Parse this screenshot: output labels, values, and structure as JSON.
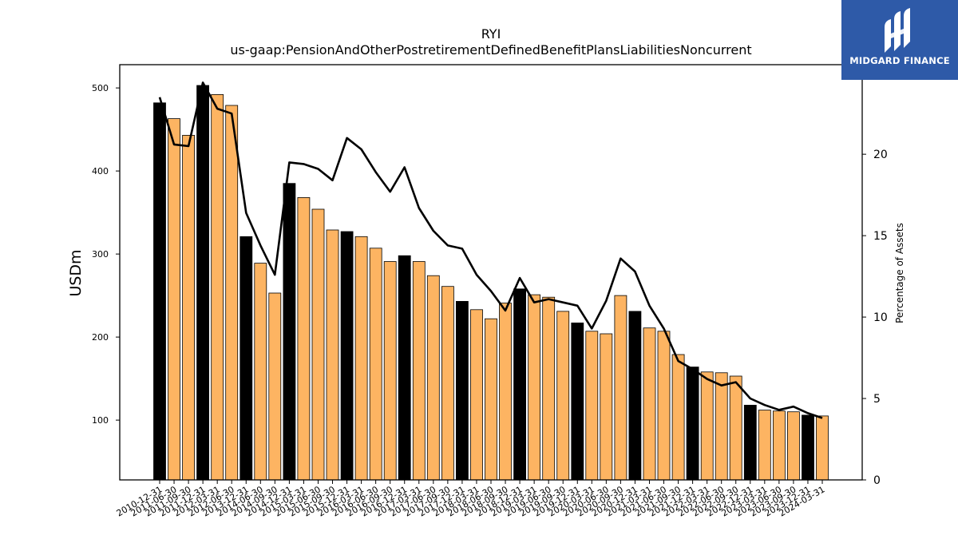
{
  "chart_data": {
    "type": "bar",
    "title": "RYI",
    "subtitle": "us-gaap:PensionAndOtherPostretirementDefinedBenefitPlansLiabilitiesNoncurrent",
    "ylabel": "USDm",
    "y2label": "Percentage of Assets",
    "ylim": [
      28,
      528
    ],
    "y2lim": [
      0,
      25.5
    ],
    "yticks": [
      "100",
      "200",
      "300",
      "400",
      "500"
    ],
    "y2ticks": [
      "0",
      "5",
      "10",
      "15",
      "20"
    ],
    "colors": {
      "annual": "#000000",
      "quarterly": "#fdb462",
      "line": "#000000"
    },
    "categories": [
      "2010-12-31",
      "2011-06-30",
      "2011-09-30",
      "2011-12-31",
      "2012-03-31",
      "2012-06-30",
      "2013-12-31",
      "2014-06-30",
      "2014-09-30",
      "2014-12-31",
      "2015-03-31",
      "2015-06-30",
      "2015-09-30",
      "2015-12-31",
      "2016-03-31",
      "2016-06-30",
      "2016-09-30",
      "2016-12-31",
      "2017-03-31",
      "2017-06-30",
      "2017-09-30",
      "2017-12-31",
      "2018-03-31",
      "2018-06-30",
      "2018-09-30",
      "2018-12-31",
      "2019-03-31",
      "2019-06-30",
      "2019-09-30",
      "2019-12-31",
      "2020-03-31",
      "2020-06-30",
      "2020-09-30",
      "2020-12-31",
      "2021-03-31",
      "2021-06-30",
      "2021-09-30",
      "2021-12-31",
      "2022-03-31",
      "2022-06-30",
      "2022-09-30",
      "2022-12-31",
      "2023-03-31",
      "2023-06-30",
      "2023-09-30",
      "2023-12-31",
      "2024-03-31"
    ],
    "series": [
      {
        "kind": "bar",
        "values": [
          482,
          463,
          443,
          503,
          492,
          479,
          321,
          289,
          253,
          385,
          368,
          354,
          329,
          327,
          321,
          307,
          291,
          298,
          291,
          274,
          261,
          243,
          233,
          222,
          241,
          258,
          251,
          248,
          231,
          217,
          207,
          204,
          250,
          231,
          211,
          207,
          179,
          164,
          158,
          157,
          153,
          118,
          112,
          111,
          110,
          106,
          105
        ],
        "annual": [
          1,
          0,
          0,
          1,
          0,
          0,
          1,
          0,
          0,
          1,
          0,
          0,
          0,
          1,
          0,
          0,
          0,
          1,
          0,
          0,
          0,
          1,
          0,
          0,
          0,
          1,
          0,
          0,
          0,
          1,
          0,
          0,
          0,
          1,
          0,
          0,
          0,
          1,
          0,
          0,
          0,
          1,
          0,
          0,
          0,
          1,
          0
        ]
      },
      {
        "kind": "line",
        "axis": "right",
        "values": [
          23.5,
          20.6,
          20.5,
          24.4,
          22.8,
          22.5,
          16.4,
          14.4,
          12.6,
          19.5,
          19.4,
          19.1,
          18.4,
          21.0,
          20.3,
          18.9,
          17.7,
          19.2,
          16.7,
          15.3,
          14.4,
          14.2,
          12.6,
          11.6,
          10.4,
          12.4,
          10.9,
          11.1,
          10.9,
          10.7,
          9.3,
          11.0,
          13.6,
          12.8,
          10.7,
          9.3,
          7.3,
          6.8,
          6.2,
          5.8,
          6.0,
          5.0,
          4.6,
          4.3,
          4.5,
          4.1,
          3.8
        ]
      }
    ]
  },
  "logo": {
    "text": "MIDGARD FINANCE"
  }
}
